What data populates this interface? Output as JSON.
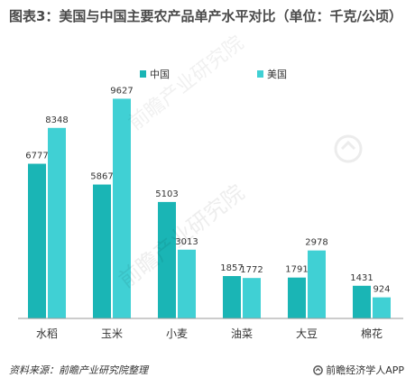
{
  "title": "图表3：美国与中国主要农产品单产水平对比（单位：千克/公顷）",
  "colors": {
    "china": "#1ab5b5",
    "usa": "#40d0d4",
    "axis": "#9a9a9a"
  },
  "chart_data": {
    "type": "bar",
    "title": "图表3：美国与中国主要农产品单产水平对比（单位：千克/公顷）",
    "categories": [
      "水稻",
      "玉米",
      "小麦",
      "油菜",
      "大豆",
      "棉花"
    ],
    "series": [
      {
        "name": "中国",
        "values": [
          6777,
          5867,
          5103,
          1857,
          1791,
          1431
        ]
      },
      {
        "name": "美国",
        "values": [
          8348,
          9627,
          3013,
          1772,
          2978,
          924
        ]
      }
    ],
    "legend": "top-center",
    "grid": false,
    "ylim": [
      0,
      10000
    ]
  },
  "footer": {
    "source": "资料来源：前瞻产业研究院整理",
    "brand": "前瞻经济学人APP"
  },
  "watermark": {
    "text": "前瞻产业研究院"
  }
}
